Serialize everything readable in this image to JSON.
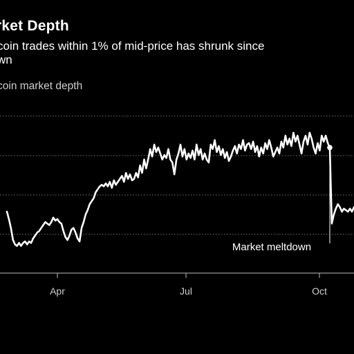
{
  "chart_data": {
    "type": "line",
    "title": "rket Depth",
    "subtitle_lines": [
      "coin trades within 1% of mid-price has shrunk since",
      "wn"
    ],
    "legend": "coin market depth",
    "x_tick_labels": [
      "Apr",
      "Jul",
      "Oct"
    ],
    "gridlines": true,
    "annotation": {
      "label": "Market meltdown",
      "at_index": 160
    },
    "series": [
      {
        "values": [
          35,
          30,
          24,
          16,
          13,
          12,
          14,
          12,
          14,
          15,
          13,
          15,
          14,
          17,
          19,
          21,
          22,
          24,
          26,
          28,
          27,
          26,
          28,
          31,
          29,
          30,
          28,
          27,
          22,
          18,
          16,
          19,
          23,
          24,
          21,
          17,
          15,
          24,
          28,
          33,
          36,
          40,
          42,
          44,
          48,
          50,
          52,
          53,
          52,
          54,
          52,
          55,
          51,
          56,
          53,
          55,
          57,
          59,
          55,
          61,
          57,
          60,
          56,
          57,
          61,
          58,
          66,
          61,
          70,
          64,
          70,
          77,
          72,
          80,
          75,
          78,
          74,
          70,
          73,
          71,
          77,
          70,
          68,
          60,
          70,
          74,
          80,
          72,
          77,
          70,
          74,
          71,
          76,
          70,
          80,
          73,
          77,
          70,
          74,
          70,
          68,
          80,
          77,
          83,
          75,
          79,
          73,
          77,
          71,
          75,
          69,
          72,
          76,
          79,
          74,
          80,
          77,
          83,
          76,
          80,
          81,
          77,
          82,
          75,
          79,
          72,
          78,
          74,
          81,
          77,
          83,
          78,
          72,
          75,
          78,
          74,
          82,
          78,
          86,
          80,
          84,
          79,
          88,
          82,
          86,
          80,
          74,
          82,
          86,
          80,
          88,
          84,
          78,
          74,
          81,
          76,
          86,
          82,
          86,
          81,
          78,
          27,
          33,
          37,
          40,
          38,
          35,
          37,
          36,
          35,
          37,
          35,
          38
        ]
      }
    ]
  }
}
